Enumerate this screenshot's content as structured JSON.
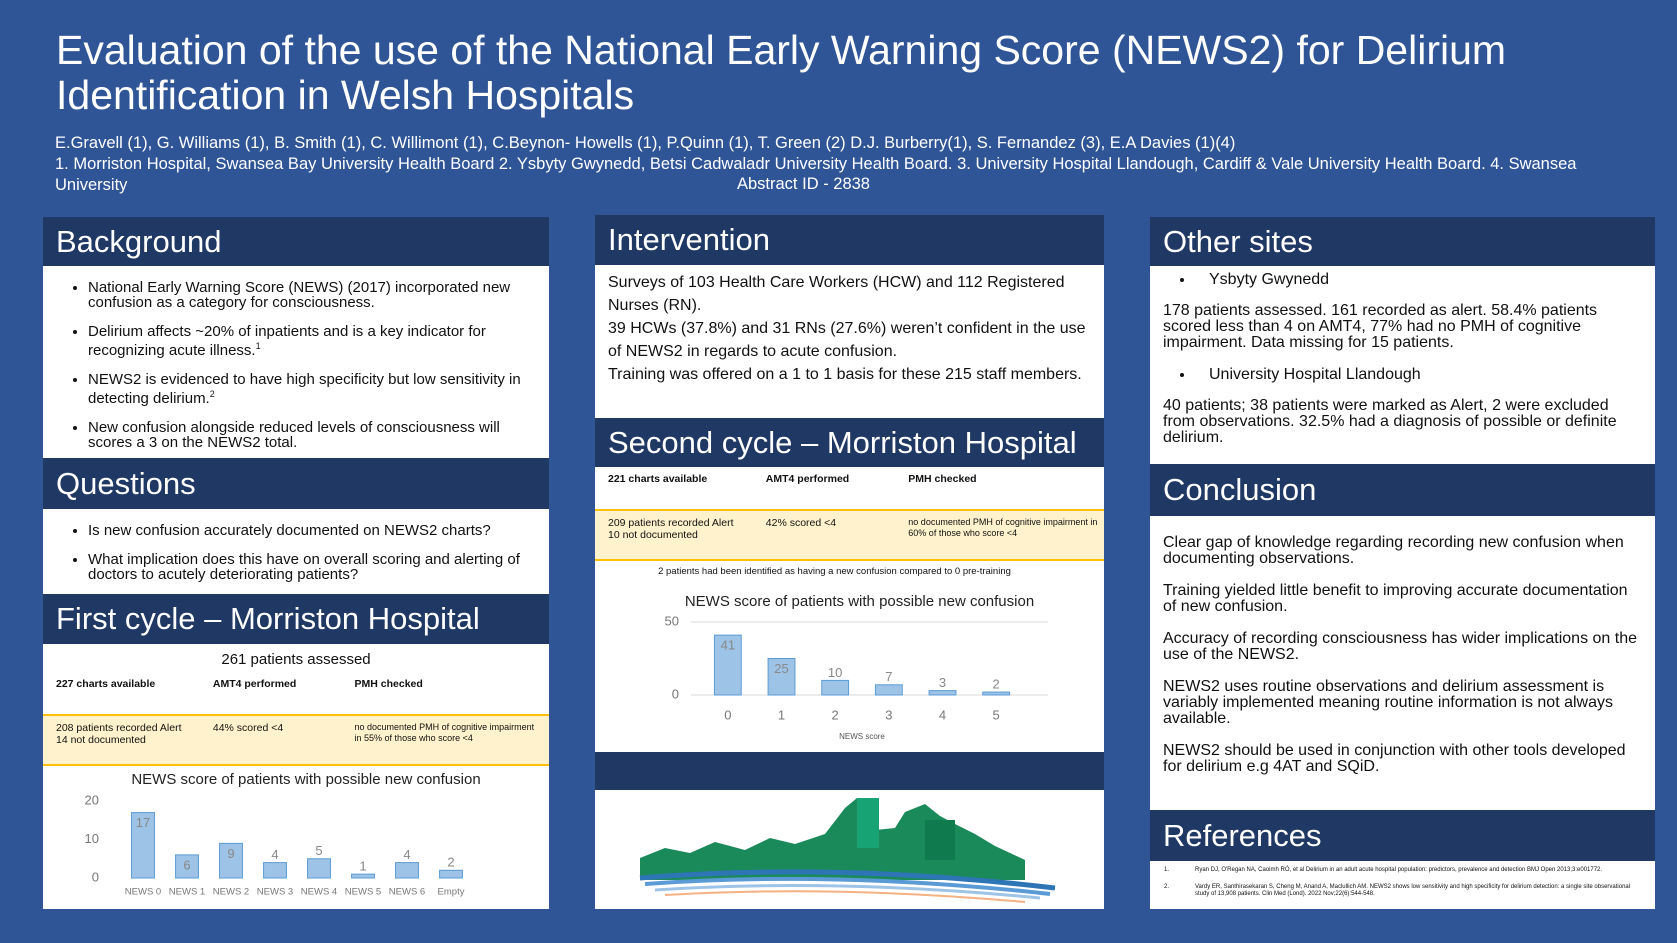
{
  "header": {
    "title": "Evaluation of the use of the National Early Warning Score (NEWS2) for Delirium Identification in Welsh Hospitals",
    "authors": "E.Gravell (1), G. Williams (1), B. Smith (1), C. Willimont (1), C.Beynon- Howells (1), P.Quinn (1), T. Green (2) D.J. Burberry(1), S. Fernandez (3), E.A Davies (1)(4)",
    "affiliations": "1. Morriston Hospital, Swansea Bay University Health Board 2. Ysbyty Gwynedd, Betsi Cadwaladr University Health Board. 3. University Hospital Llandough, Cardiff & Vale University Health Board. 4. Swansea University",
    "abstract_id": "Abstract ID - 2838"
  },
  "background": {
    "heading": "Background",
    "bullets": [
      {
        "text": "National Early Warning Score (NEWS) (2017) incorporated new confusion as a category for consciousness."
      },
      {
        "text": "Delirium affects ~20% of inpatients and is a key indicator for recognizing acute illness.",
        "note": "1"
      },
      {
        "text": "NEWS2 is evidenced to have high specificity but low sensitivity in detecting delirium.",
        "note": "2"
      },
      {
        "text": "New confusion alongside reduced levels of consciousness will scores a 3 on the NEWS2 total."
      }
    ]
  },
  "questions": {
    "heading": "Questions",
    "bullets": [
      "Is new confusion accurately documented on NEWS2 charts?",
      "What implication does this have on  overall scoring and alerting of doctors to acutely deteriorating patients?"
    ]
  },
  "first_cycle": {
    "heading": "First cycle – Morriston Hospital",
    "table": {
      "caption": "261 patients assessed",
      "header": [
        "227 charts available",
        "AMT4 performed",
        "PMH checked"
      ],
      "row": [
        "208 patients recorded Alert\n14 not documented",
        "44% scored <4",
        "no documented PMH of cognitive impairment in 55% of those who score <4"
      ]
    },
    "chart": {
      "type": "bar",
      "title": "NEWS score of patients with possible new confusion",
      "categories": [
        "NEWS 0",
        "NEWS 1",
        "NEWS 2",
        "NEWS 3",
        "NEWS 4",
        "NEWS 5",
        "NEWS 6",
        "Empty"
      ],
      "values": [
        17,
        6,
        9,
        4,
        5,
        1,
        4,
        2
      ],
      "ylim": [
        0,
        20
      ],
      "yticks": [
        0,
        10,
        20
      ],
      "color": "#9dc3e6",
      "grid": false
    }
  },
  "intervention": {
    "heading": "Intervention",
    "paragraphs": [
      "Surveys of 103 Health Care Workers (HCW) and 112 Registered Nurses (RN).",
      "39 HCWs (37.8%) and 31 RNs (27.6%) weren’t confident in the use of NEWS2 in regards to acute confusion.",
      "Training was offered on a 1 to 1 basis for these 215 staff members."
    ]
  },
  "second_cycle": {
    "heading": "Second cycle – Morriston Hospital",
    "table": {
      "header": [
        "221 charts available",
        "AMT4 performed",
        "PMH checked"
      ],
      "row": [
        "209 patients recorded Alert\n10 not documented",
        "42% scored <4",
        "no documented PMH of cognitive impairment in 60% of those who score <4"
      ],
      "note": "2 patients had been identified as having a new confusion compared to 0 pre-training"
    },
    "chart": {
      "type": "bar",
      "title": "NEWS score of patients with possible new confusion",
      "x_label": "NEWS score",
      "categories": [
        "0",
        "1",
        "2",
        "3",
        "4",
        "5"
      ],
      "values": [
        41,
        25,
        10,
        7,
        3,
        2
      ],
      "ylim": [
        0,
        50
      ],
      "yticks": [
        0,
        50
      ],
      "color": "#9dc3e6",
      "grid": true
    }
  },
  "other_sites": {
    "heading": "Other sites",
    "sites": [
      {
        "name": "Ysbyty Gwynedd",
        "text": "178 patients assessed. 161 recorded as alert. 58.4% patients scored less than 4 on AMT4, 77% had no PMH of cognitive impairment. Data missing for 15 patients."
      },
      {
        "name": "University Hospital Llandough",
        "text": "40 patients; 38 patients were marked as Alert, 2 were excluded from observations. 32.5%  had a diagnosis of possible or definite delirium."
      }
    ]
  },
  "conclusion": {
    "heading": "Conclusion",
    "paragraphs": [
      "Clear gap of knowledge regarding recording new confusion when documenting observations.",
      "Training yielded little benefit to improving accurate documentation of new confusion.",
      "Accuracy of recording consciousness has wider implications on the use of the NEWS2.",
      "NEWS2 uses routine observations and delirium assessment is variably implemented meaning routine information is not always available.",
      "NEWS2 should be used in conjunction with other tools developed for delirium e.g 4AT and SQiD."
    ]
  },
  "references": {
    "heading": "References",
    "items": [
      {
        "number": "1.",
        "text": "Ryan DJ, O'Regan NA, Caoimh RÓ, et al Delirium in an adult acute hospital population: predictors, prevalence and detection BMJ Open 2013;3:e001772."
      },
      {
        "number": "2.",
        "text": "Vardy ER, Santhirasekaran S, Cheng M, Anand A, Maclullich AM. NEWS2 shows low sensitivity and high specificity for delirium detection: a single site observational study of 13,908 patients. Clin Med (Lond). 2022 Nov;22(6):544-548."
      }
    ]
  }
}
